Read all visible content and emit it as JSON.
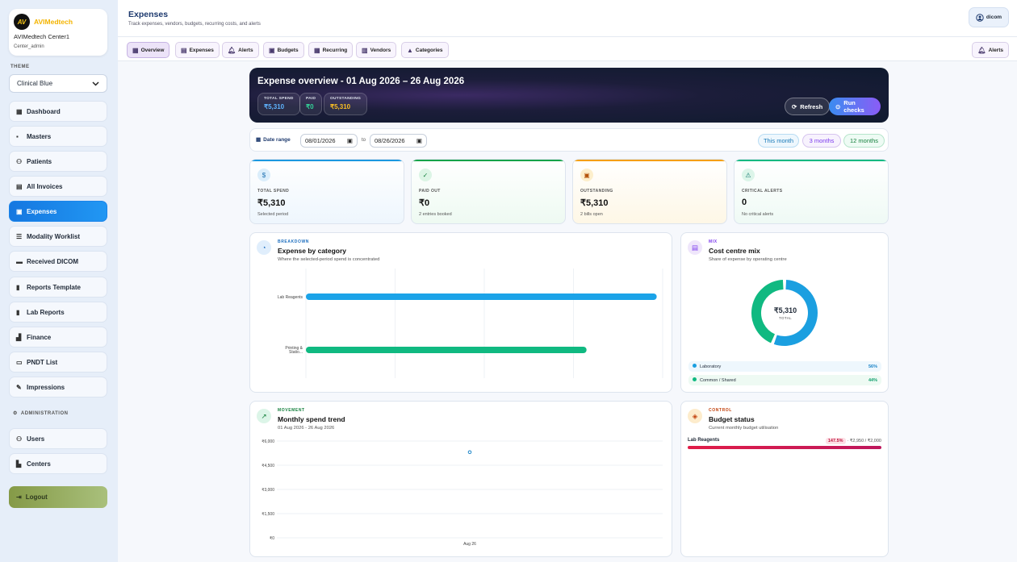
{
  "brand": {
    "name": "AVIMedtech",
    "logo_text": "AV",
    "center": "AVIMedtech Center1",
    "role": "Center_admin"
  },
  "sidebar": {
    "theme_label": "THEME",
    "theme_value": "Clinical Blue",
    "items": [
      {
        "label": "Dashboard",
        "icon": "dashboard-icon"
      },
      {
        "label": "Masters",
        "icon": "briefcase-icon"
      },
      {
        "label": "Patients",
        "icon": "users-icon"
      },
      {
        "label": "All Invoices",
        "icon": "receipt-icon"
      },
      {
        "label": "Expenses",
        "icon": "wallet-icon"
      },
      {
        "label": "Modality Worklist",
        "icon": "list-icon"
      },
      {
        "label": "Received DICOM",
        "icon": "inbox-icon"
      },
      {
        "label": "Reports Template",
        "icon": "document-icon"
      },
      {
        "label": "Lab Reports",
        "icon": "flask-icon"
      },
      {
        "label": "Finance",
        "icon": "chart-icon"
      },
      {
        "label": "PNDT List",
        "icon": "folder-icon"
      },
      {
        "label": "Impressions",
        "icon": "pen-icon"
      }
    ],
    "admin_label": "ADMINISTRATION",
    "admin_items": [
      {
        "label": "Users",
        "icon": "group-icon"
      },
      {
        "label": "Centers",
        "icon": "building-icon"
      }
    ],
    "logout": "Logout"
  },
  "header": {
    "title": "Expenses",
    "subtitle": "Track expenses, vendors, budgets, recurring costs, and alerts",
    "user": "dicom"
  },
  "tabs": [
    "Overview",
    "Expenses",
    "Alerts",
    "Budgets",
    "Recurring",
    "Vendors",
    "Categories"
  ],
  "tab_alerts_right": "Alerts",
  "hero": {
    "title": "Expense overview - 01 Aug 2026 – 26 Aug 2026",
    "pills": [
      {
        "label": "TOTAL SPEND",
        "value": "₹5,310",
        "color": "#5fb3ff"
      },
      {
        "label": "PAID",
        "value": "₹0",
        "color": "#34d399"
      },
      {
        "label": "OUTSTANDING",
        "value": "₹5,310",
        "color": "#fbbf24"
      }
    ],
    "refresh": "Refresh",
    "run_checks": "Run checks"
  },
  "daterange": {
    "label": "Date range",
    "from": "08/01/2026",
    "to_label": "to",
    "to": "08/26/2026",
    "quick": [
      "This month",
      "3 months",
      "12 months"
    ]
  },
  "stats": [
    {
      "label": "TOTAL SPEND",
      "value": "₹5,310",
      "sub": "Selected period",
      "color": "#1b98e0",
      "icon": "$"
    },
    {
      "label": "PAID OUT",
      "value": "₹0",
      "sub": "2 entries booked",
      "color": "#16a34a",
      "icon": "✓"
    },
    {
      "label": "OUTSTANDING",
      "value": "₹5,310",
      "sub": "2 bills open",
      "color": "#f59e0b",
      "icon": "▣"
    },
    {
      "label": "CRITICAL ALERTS",
      "value": "0",
      "sub": "No critical alerts",
      "color": "#10b981",
      "icon": "⚠"
    }
  ],
  "breakdown": {
    "kicker": "BREAKDOWN",
    "title": "Expense by category",
    "subtitle": "Where the selected-period spend is concentrated"
  },
  "mix": {
    "kicker": "MIX",
    "title": "Cost centre mix",
    "subtitle": "Share of expense by operating centre",
    "center_value": "₹5,310",
    "center_label": "TOTAL",
    "legend": [
      {
        "name": "Laboratory",
        "pct": "56%",
        "color": "#1b9fe0"
      },
      {
        "name": "Common / Shared",
        "pct": "44%",
        "color": "#10b981"
      }
    ]
  },
  "movement": {
    "kicker": "MOVEMENT",
    "title": "Monthly spend trend",
    "subtitle": "01 Aug 2026 - 26 Aug 2026"
  },
  "control": {
    "kicker": "CONTROL",
    "title": "Budget status",
    "subtitle": "Current monthly budget utilisation",
    "row_label": "Lab Reagents",
    "row_pct": "147.5%",
    "row_amounts": "· ₹2,950 / ₹2,000"
  },
  "chart_data": [
    {
      "type": "bar",
      "orientation": "horizontal",
      "categories": [
        "Lab Reagents",
        "Printing & Statio..."
      ],
      "values": [
        2950,
        2360
      ],
      "colors": [
        "#1ba3e8",
        "#10b981"
      ]
    },
    {
      "type": "pie",
      "categories": [
        "Laboratory",
        "Common / Shared"
      ],
      "values": [
        56,
        44
      ],
      "colors": [
        "#1b9fe0",
        "#10b981"
      ]
    },
    {
      "type": "scatter",
      "x": [
        "Aug 26"
      ],
      "values": [
        5310
      ],
      "ylim": [
        0,
        6000
      ],
      "yticks": [
        "₹0",
        "₹1,500",
        "₹3,000",
        "₹4,500",
        "₹6,000"
      ]
    }
  ]
}
